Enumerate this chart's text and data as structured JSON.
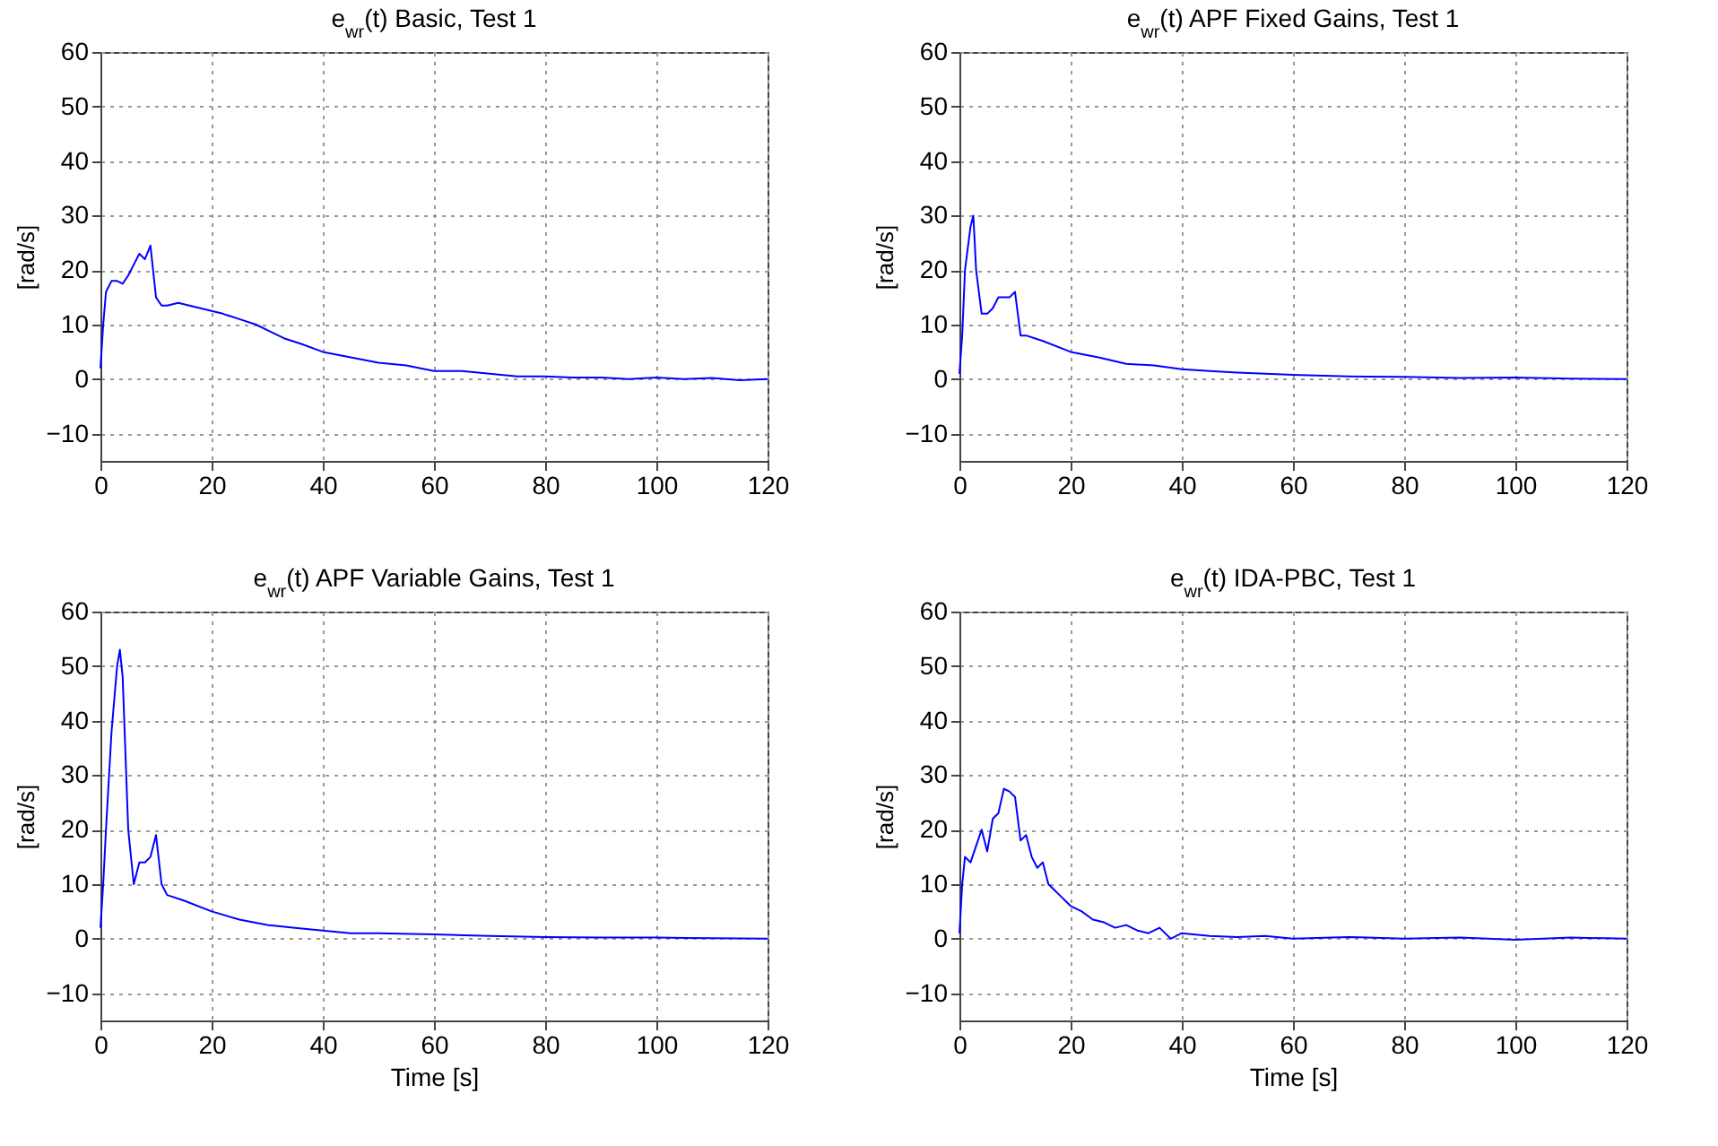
{
  "chart_data": [
    {
      "type": "line",
      "title": "e$_{wr}$(t) Basic, Test 1",
      "ylabel": "[rad/s]",
      "xlim": [
        0,
        120
      ],
      "ylim": [
        -15,
        60
      ],
      "xticks": [
        0,
        20,
        40,
        60,
        80,
        100,
        120
      ],
      "yticks": [
        -10,
        0,
        10,
        20,
        30,
        40,
        50,
        60
      ],
      "grid": true,
      "x": [
        0,
        0.5,
        1,
        2,
        3,
        4,
        5,
        6,
        7,
        8,
        9,
        10,
        11,
        12,
        14,
        16,
        18,
        20,
        22,
        25,
        28,
        30,
        33,
        36,
        40,
        45,
        50,
        55,
        60,
        65,
        70,
        75,
        80,
        85,
        90,
        95,
        100,
        105,
        110,
        115,
        120
      ],
      "series": [
        {
          "color": "#0000ff",
          "values": [
            2,
            10,
            16,
            18,
            18,
            17.5,
            19,
            21,
            23,
            22,
            24.5,
            15,
            13.5,
            13.5,
            14,
            13.5,
            13,
            12.5,
            12,
            11,
            10,
            9,
            7.5,
            6.5,
            5,
            4,
            3,
            2.5,
            1.5,
            1.5,
            1,
            0.5,
            0.5,
            0.3,
            0.3,
            0,
            0.3,
            0,
            0.2,
            -0.2,
            0
          ]
        }
      ]
    },
    {
      "type": "line",
      "title": "e$_{wr}$(t)  APF Fixed Gains, Test  1",
      "ylabel": "[rad/s]",
      "xlim": [
        0,
        120
      ],
      "ylim": [
        -15,
        60
      ],
      "xticks": [
        0,
        20,
        40,
        60,
        80,
        100,
        120
      ],
      "yticks": [
        -10,
        0,
        10,
        20,
        30,
        40,
        50,
        60
      ],
      "grid": true,
      "x": [
        0,
        0.5,
        1,
        2,
        2.5,
        3,
        4,
        5,
        6,
        7,
        8,
        9,
        10,
        11,
        12,
        15,
        20,
        25,
        30,
        35,
        40,
        45,
        50,
        60,
        70,
        80,
        90,
        100,
        110,
        120
      ],
      "series": [
        {
          "color": "#0000ff",
          "values": [
            1,
            8,
            20,
            28,
            30,
            20,
            12,
            12,
            13,
            15,
            15,
            15,
            16,
            8,
            8,
            7,
            5,
            4,
            2.8,
            2.5,
            1.8,
            1.5,
            1.2,
            0.8,
            0.5,
            0.4,
            0.2,
            0.3,
            0.1,
            0
          ]
        }
      ]
    },
    {
      "type": "line",
      "title": "e$_{wr}$(t) APF Variable Gains, Test  1",
      "ylabel": "[rad/s]",
      "xlabel": "Time [s]",
      "xlim": [
        0,
        120
      ],
      "ylim": [
        -15,
        60
      ],
      "xticks": [
        0,
        20,
        40,
        60,
        80,
        100,
        120
      ],
      "yticks": [
        -10,
        0,
        10,
        20,
        30,
        40,
        50,
        60
      ],
      "grid": true,
      "x": [
        0,
        0.5,
        1,
        2,
        3,
        3.5,
        4,
        5,
        6,
        7,
        8,
        9,
        10,
        11,
        12,
        15,
        20,
        25,
        30,
        35,
        40,
        45,
        50,
        60,
        70,
        80,
        90,
        100,
        110,
        120
      ],
      "series": [
        {
          "color": "#0000ff",
          "values": [
            2,
            10,
            20,
            38,
            50,
            53,
            48,
            20,
            10,
            14,
            14,
            15,
            19,
            10,
            8,
            7,
            5,
            3.5,
            2.5,
            2,
            1.5,
            1,
            1,
            0.8,
            0.5,
            0.3,
            0.2,
            0.2,
            0.1,
            0
          ]
        }
      ]
    },
    {
      "type": "line",
      "title": "e$_{wr}$(t) IDA-PBC, Test  1",
      "ylabel": "[rad/s]",
      "xlabel": "Time [s]",
      "xlim": [
        0,
        120
      ],
      "ylim": [
        -15,
        60
      ],
      "xticks": [
        0,
        20,
        40,
        60,
        80,
        100,
        120
      ],
      "yticks": [
        -10,
        0,
        10,
        20,
        30,
        40,
        50,
        60
      ],
      "grid": true,
      "x": [
        0,
        0.5,
        1,
        2,
        3,
        4,
        5,
        6,
        7,
        8,
        9,
        10,
        11,
        12,
        13,
        14,
        15,
        16,
        17,
        18,
        19,
        20,
        22,
        24,
        26,
        28,
        30,
        32,
        34,
        36,
        38,
        40,
        45,
        50,
        55,
        60,
        70,
        80,
        90,
        100,
        110,
        120
      ],
      "series": [
        {
          "color": "#0000ff",
          "values": [
            1,
            10,
            15,
            14,
            17,
            20,
            16,
            22,
            23,
            27.5,
            27,
            26,
            18,
            19,
            15,
            13,
            14,
            10,
            9,
            8,
            7,
            6,
            5,
            3.5,
            3,
            2,
            2.5,
            1.5,
            1,
            2,
            0,
            1,
            0.5,
            0.3,
            0.5,
            0,
            0.3,
            0,
            0.2,
            -0.2,
            0.2,
            0
          ]
        }
      ]
    }
  ]
}
